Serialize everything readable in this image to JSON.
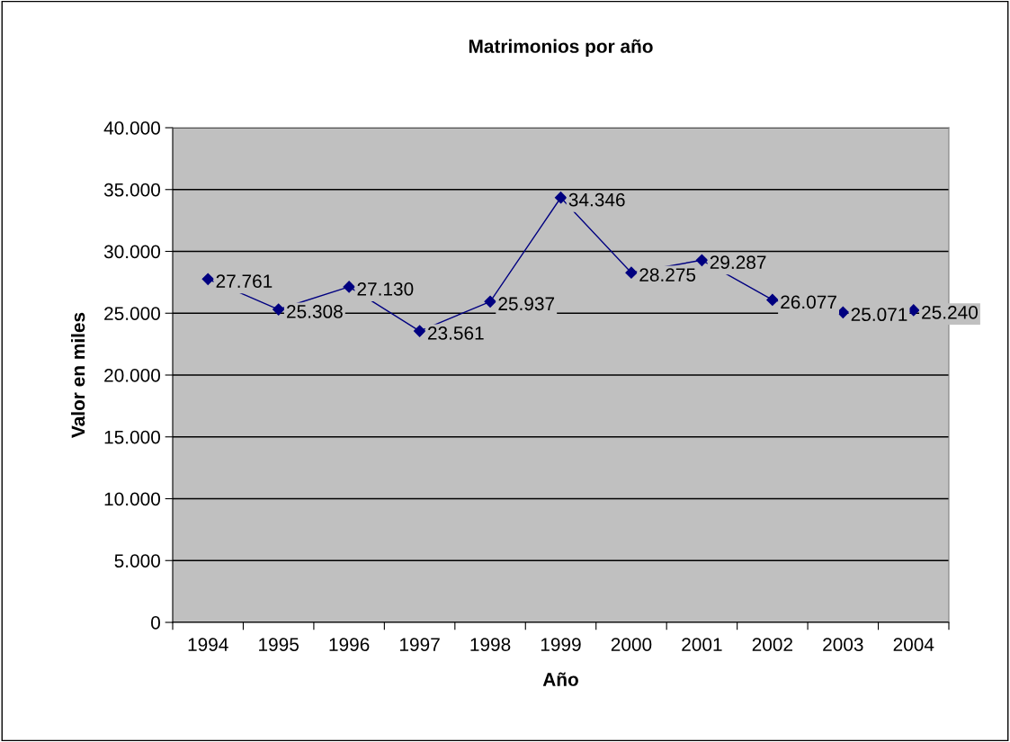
{
  "chart_data": {
    "type": "line",
    "title": "Matrimonios por año",
    "xlabel": "Año",
    "ylabel": "Valor en miles",
    "categories": [
      "1994",
      "1995",
      "1996",
      "1997",
      "1998",
      "1999",
      "2000",
      "2001",
      "2002",
      "2003",
      "2004"
    ],
    "series": [
      {
        "color": "#000080",
        "values": [
          27761,
          25308,
          27130,
          23561,
          25937,
          34346,
          28275,
          29287,
          26077,
          25071,
          25240
        ],
        "value_labels": [
          "27.761",
          "25.308",
          "27.130",
          "23.561",
          "25.937",
          "34.346",
          "28.275",
          "29.287",
          "26.077",
          "25.071",
          "25.240"
        ]
      }
    ],
    "ylim": [
      0,
      40000
    ],
    "yticks": [
      {
        "value": 0,
        "label": "0"
      },
      {
        "value": 5000,
        "label": "5.000"
      },
      {
        "value": 10000,
        "label": "10.000"
      },
      {
        "value": 15000,
        "label": "15.000"
      },
      {
        "value": 20000,
        "label": "20.000"
      },
      {
        "value": 25000,
        "label": "25.000"
      },
      {
        "value": 30000,
        "label": "30.000"
      },
      {
        "value": 35000,
        "label": "35.000"
      },
      {
        "value": 40000,
        "label": "40.000"
      }
    ],
    "grid": "y",
    "legend": false,
    "marker": "diamond",
    "line_style": "solid"
  }
}
